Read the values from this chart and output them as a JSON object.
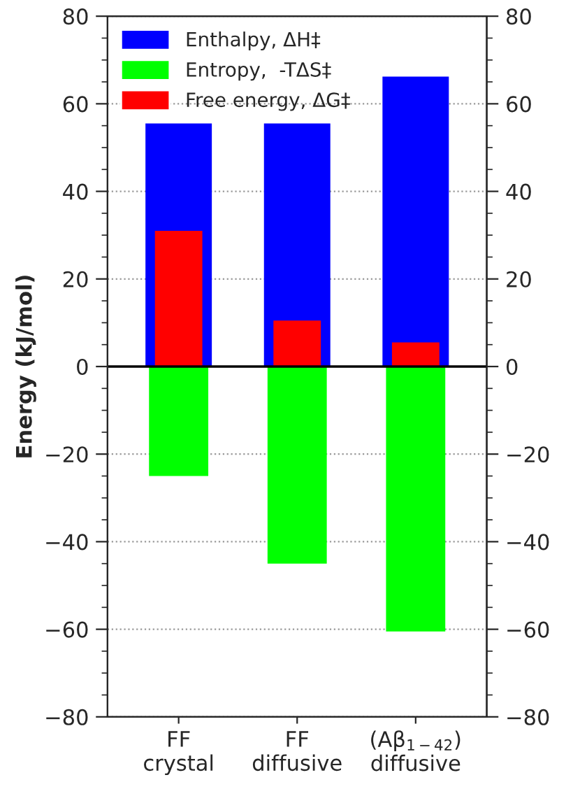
{
  "chart_data": {
    "type": "bar",
    "categories": [
      "FF\ncrystal",
      "FF\ndiffusive",
      "(Aβ$_{1−42}$)\ndiffusive"
    ],
    "series": [
      {
        "name": "Enthalpy, ΔH‡",
        "color": "#0000ff",
        "values": [
          55.5,
          55.5,
          66.2
        ]
      },
      {
        "name": "Entropy,  -TΔS‡",
        "color": "#00ff00",
        "values": [
          -25,
          -45,
          -60.5
        ]
      },
      {
        "name": "Free energy, ΔG‡",
        "color": "#ff0000",
        "values": [
          31,
          10.5,
          5.5
        ]
      }
    ],
    "ylabel": "Energy (kJ/mol)",
    "ylim": [
      -80,
      80
    ],
    "yticks": [
      {
        "value": -80,
        "label": "−80"
      },
      {
        "value": -60,
        "label": "−60"
      },
      {
        "value": -40,
        "label": "−40"
      },
      {
        "value": -20,
        "label": "−20"
      },
      0,
      20,
      40,
      60,
      80
    ],
    "y2lim": [
      -80,
      80
    ],
    "y2ticks": [
      {
        "value": -80,
        "label": "−80"
      },
      {
        "value": -60,
        "label": "−60"
      },
      {
        "value": -40,
        "label": "−40"
      },
      {
        "value": -20,
        "label": "−20"
      },
      0,
      20,
      40,
      60,
      80
    ],
    "ref_lines": [
      {
        "axis": "y",
        "value": 0,
        "color": "#000000"
      }
    ],
    "grid": "y",
    "legend": "top left"
  }
}
